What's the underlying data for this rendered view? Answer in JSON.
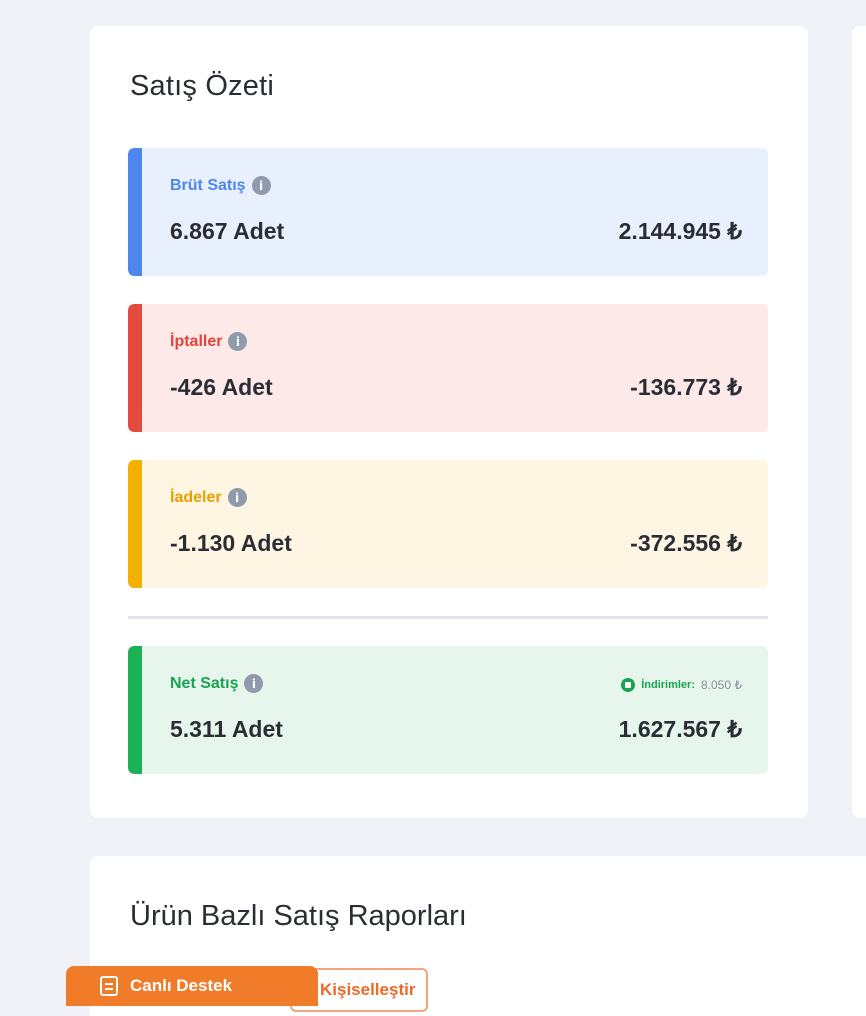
{
  "summary": {
    "title": "Satış Özeti",
    "metrics": {
      "brut": {
        "label": "Brüt Satış",
        "quantity": "6.867 Adet",
        "amount": "2.144.945 ₺",
        "color": "#4f86ee"
      },
      "iptal": {
        "label": "İptaller",
        "quantity": "-426 Adet",
        "amount": "-136.773 ₺",
        "color": "#e44b3e"
      },
      "iade": {
        "label": "İadeler",
        "quantity": "-1.130 Adet",
        "amount": "-372.556 ₺",
        "color": "#f2b000"
      },
      "net": {
        "label": "Net Satış",
        "quantity": "5.311 Adet",
        "amount": "1.627.567 ₺",
        "color": "#1db155",
        "discount_label": "İndirimler:",
        "discount_value": "8.050 ₺"
      }
    },
    "info_icon": "info-icon"
  },
  "reports": {
    "title": "Ürün Bazlı Satış Raporları",
    "personalize_label": "Kişiselleştir"
  },
  "live_support": {
    "label": "Canlı Destek",
    "icon": "chat-icon",
    "color": "#f07b28"
  }
}
